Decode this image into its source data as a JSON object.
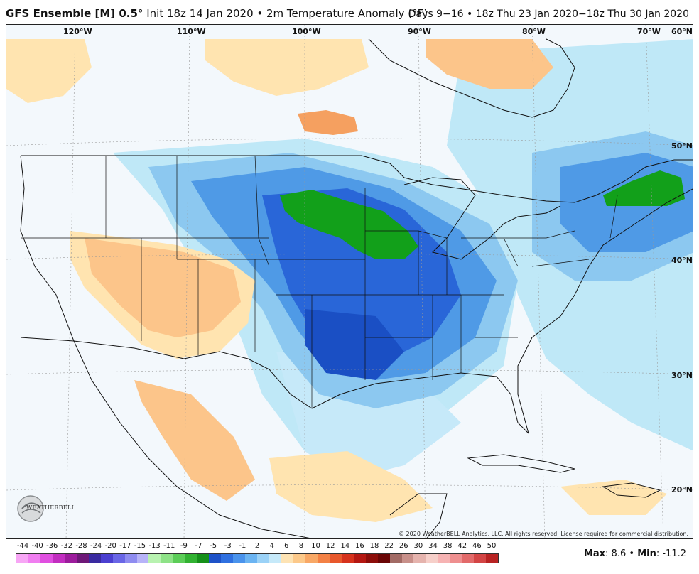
{
  "header": {
    "model": "GFS Ensemble [M] 0.5",
    "init_text": "° Init 18z 14 Jan 2020 • 2m Temperature Anomaly (°F)",
    "range_text": "Days 9−16 • 18z Thu 23 Jan 2020−18z Thu 30 Jan 2020"
  },
  "map": {
    "lon_labels": [
      "120°W",
      "110°W",
      "100°W",
      "90°W",
      "80°W",
      "70°W"
    ],
    "lat_labels": [
      "60°N",
      "50°N",
      "40°N",
      "30°N",
      "20°N"
    ],
    "copyright": "© 2020 WeatherBELL Analytics, LLC. All rights reserved. License required for commercial distribution.",
    "logo_text": "WEATHERBELL"
  },
  "colorbar": {
    "labels": [
      "-44",
      "-40",
      "-36",
      "-32",
      "-28",
      "-24",
      "-20",
      "-17",
      "-15",
      "-13",
      "-11",
      "-9",
      "-7",
      "-5",
      "-3",
      "-1",
      "2",
      "4",
      "6",
      "8",
      "10",
      "12",
      "14",
      "16",
      "18",
      "22",
      "26",
      "30",
      "34",
      "38",
      "42",
      "46",
      "50"
    ],
    "colors": [
      "#f7a6f5",
      "#f07ef0",
      "#e04fe0",
      "#c22ec0",
      "#9c1c9c",
      "#6e1878",
      "#3a2aa0",
      "#4b3fd0",
      "#6a66e6",
      "#8f8cf0",
      "#b7b3f8",
      "#b8f2b0",
      "#8ee287",
      "#5ccd58",
      "#32b232",
      "#16901a",
      "#1e52c8",
      "#2f70e0",
      "#4a93ec",
      "#6bb4f2",
      "#9bd2f7",
      "#c6e9f9",
      "#fde3b4",
      "#fcc98a",
      "#f8a866",
      "#f38145",
      "#e8582c",
      "#d6321c",
      "#b41712",
      "#8c0d0a",
      "#6a0606",
      "#a26b65",
      "#c8908a",
      "#e5b3ad",
      "#f6cfc9",
      "#f6b3b3",
      "#ee8f8f",
      "#e26a6a",
      "#d34545",
      "#b82323"
    ],
    "max_label": "Max",
    "max_value": "8.6",
    "min_label": "Min",
    "min_value": "-11.2",
    "separator": "•"
  },
  "colors": {
    "background": "#f3f8fc",
    "cold_1": "#bfe8f7",
    "cold_2": "#8cc8f0",
    "cold_3": "#4f9ae6",
    "cold_4": "#2966d8",
    "cold_5": "#1a4fc4",
    "very_cold": "#12a01a",
    "warm_1": "#ffe4b0",
    "warm_2": "#fcc58a",
    "warm_3": "#f5a060",
    "warm_4": "#ee7a3a"
  }
}
